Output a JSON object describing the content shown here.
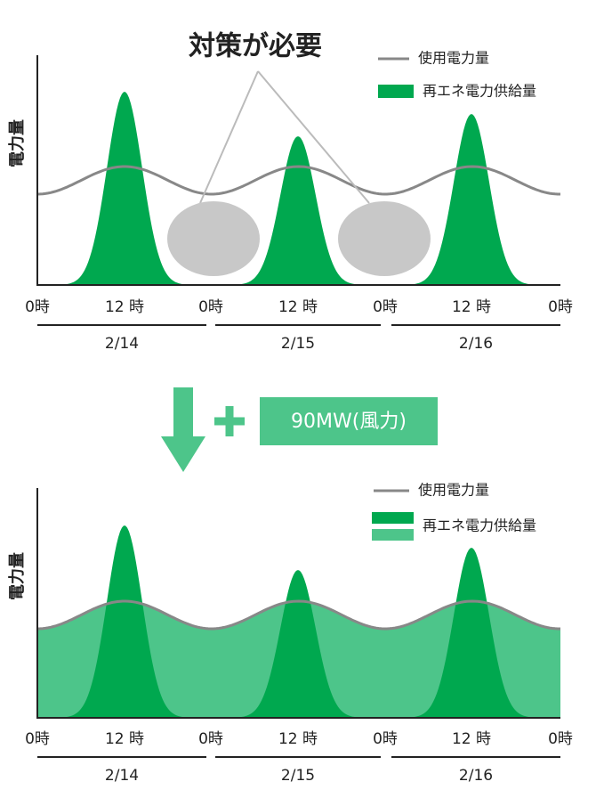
{
  "top_chart": {
    "title": "対策が必要",
    "legend": [
      "使用電力量",
      "再エネ電力供給量"
    ],
    "y_label": "電力量",
    "x_ticks": [
      "0時",
      "12 時",
      "0時",
      "12 時",
      "0時",
      "12 時",
      "0時"
    ],
    "dates": [
      "2/14",
      "2/15",
      "2/16"
    ]
  },
  "callout": {
    "label": "90MW(風力)"
  },
  "bottom_chart": {
    "legend": [
      "使用電力量",
      "再エネ電力供給量"
    ],
    "y_label": "電力量",
    "x_ticks": [
      "0時",
      "12 時",
      "0時",
      "12 時",
      "0時",
      "12 時",
      "0時"
    ],
    "dates": [
      "2/14",
      "2/15",
      "2/16"
    ]
  }
}
